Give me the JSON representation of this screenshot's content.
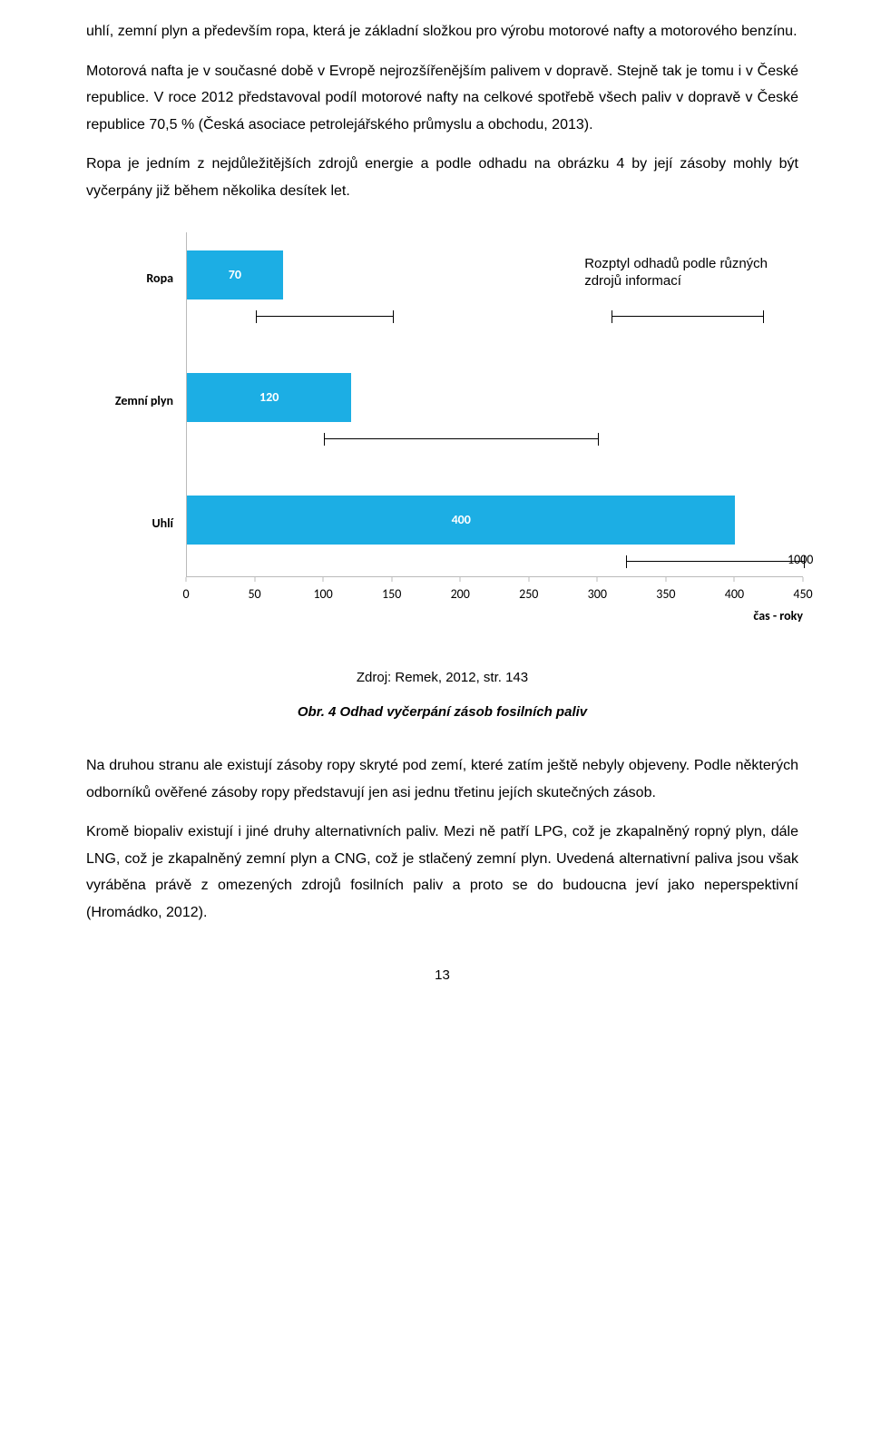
{
  "para1": "uhlí, zemní plyn a především ropa, která je základní složkou pro výrobu motorové nafty a motorového benzínu.",
  "para2": "Motorová nafta je v současné době v Evropě nejrozšířenějším palivem v dopravě. Stejně tak je tomu i v České republice. V roce 2012 představoval podíl motorové nafty na celkové spotřebě všech paliv v dopravě v České republice 70,5 % (Česká asociace petrolejářského průmyslu a obchodu, 2013).",
  "para3": "Ropa je jedním z nejdůležitějších zdrojů energie a podle odhadu na obrázku 4 by její zásoby mohly být vyčerpány již během několika desítek let.",
  "para4": "Na druhou stranu ale existují zásoby ropy skryté pod zemí, které zatím ještě nebyly objeveny. Podle některých odborníků ověřené zásoby ropy představují jen asi jednu třetinu jejích skutečných zásob.",
  "para5": "Kromě biopaliv existují i jiné druhy alternativních paliv. Mezi ně patří LPG, což je zkapalněný ropný plyn, dále LNG, což je zkapalněný zemní plyn a CNG, což je stlačený zemní plyn. Uvedená alternativní paliva jsou však vyráběna právě z omezených zdrojů fosilních paliv a proto se do budoucna jeví jako neperspektivní (Hromádko, 2012).",
  "source": "Zdroj: Remek, 2012, str. 143",
  "caption": "Obr. 4 Odhad vyčerpání zásob fosilních paliv",
  "pageNumber": "13",
  "chart": {
    "type": "bar",
    "xmax": 450,
    "bar_color": "#1caee4",
    "axis_color": "#bbbbbb",
    "categories": [
      "Ropa",
      "Zemní plyn",
      "Uhlí"
    ],
    "values": [
      70,
      120,
      400
    ],
    "errorbars": [
      {
        "low": 50,
        "high": 150
      },
      {
        "low": 100,
        "high": 300
      },
      {
        "low": 320,
        "high": 1000
      }
    ],
    "xticks": [
      0,
      50,
      100,
      150,
      200,
      250,
      300,
      350,
      400,
      450
    ],
    "xlabel": "čas - roky",
    "annotation": "Rozptyl odhadů podle různých zdrojů informací",
    "annot_whisker": {
      "low": 310,
      "high": 420
    },
    "extra_label": "1000",
    "value_color": "#ffffff"
  }
}
